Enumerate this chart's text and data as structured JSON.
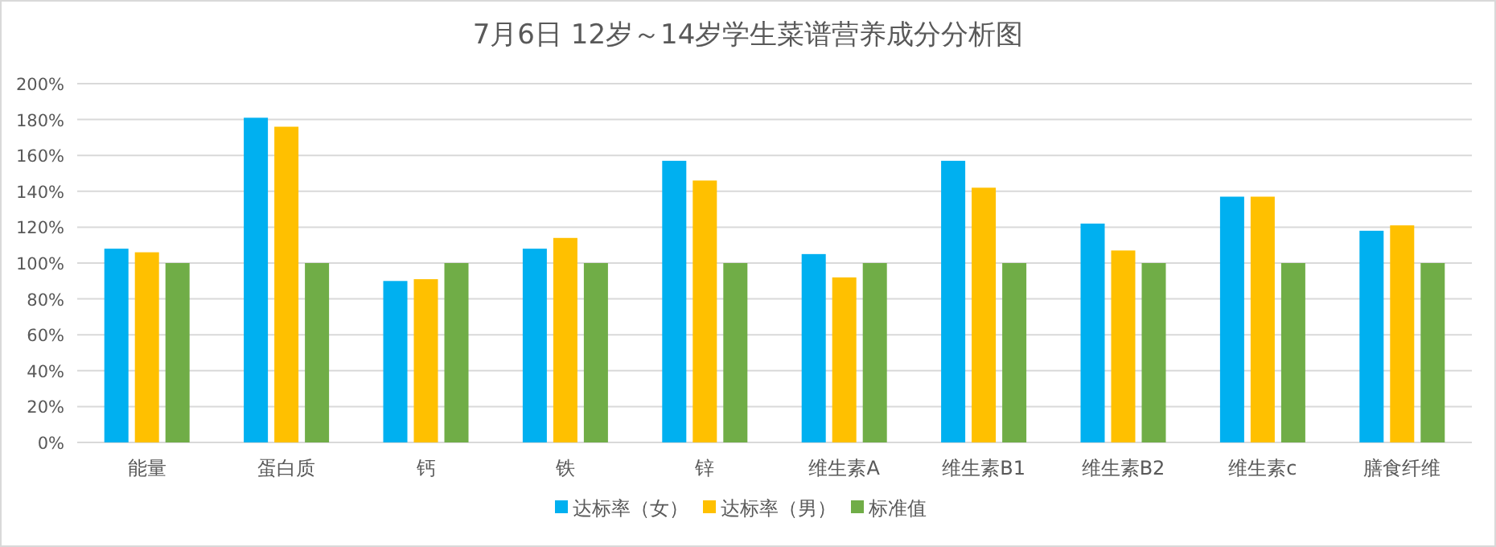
{
  "chart_data": {
    "type": "bar",
    "title": "7月6日 12岁～14岁学生菜谱营养成分分析图",
    "categories": [
      "能量",
      "蛋白质",
      "钙",
      "铁",
      "锌",
      "维生素A",
      "维生素B1",
      "维生素B2",
      "维生素c",
      "膳食纤维"
    ],
    "series": [
      {
        "name": "达标率（女）",
        "color": "#00b0f0",
        "values": [
          108,
          181,
          90,
          108,
          157,
          105,
          157,
          122,
          137,
          118
        ]
      },
      {
        "name": "达标率（男）",
        "color": "#ffc000",
        "values": [
          106,
          176,
          91,
          114,
          146,
          92,
          142,
          107,
          137,
          121
        ]
      },
      {
        "name": "标准值",
        "color": "#70ad47",
        "values": [
          100,
          100,
          100,
          100,
          100,
          100,
          100,
          100,
          100,
          100
        ]
      }
    ],
    "ylim": [
      0,
      200
    ],
    "yticks": [
      {
        "value": 0,
        "label": "0%"
      },
      {
        "value": 20,
        "label": "20%"
      },
      {
        "value": 40,
        "label": "40%"
      },
      {
        "value": 60,
        "label": "60%"
      },
      {
        "value": 80,
        "label": "80%"
      },
      {
        "value": 100,
        "label": "100%"
      },
      {
        "value": 120,
        "label": "120%"
      },
      {
        "value": 140,
        "label": "140%"
      },
      {
        "value": 160,
        "label": "160%"
      },
      {
        "value": 180,
        "label": "180%"
      },
      {
        "value": 200,
        "label": "200%"
      }
    ],
    "grid": "y",
    "legend": "bottom"
  }
}
